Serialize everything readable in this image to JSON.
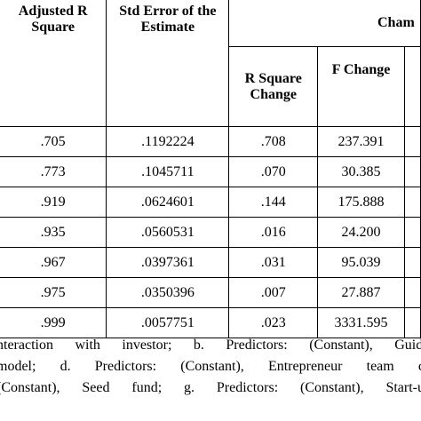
{
  "table": {
    "headers": {
      "adjusted_r_square": "Adjusted R Square",
      "std_error": "Std Error of the Estimate",
      "change_group": "Cham",
      "r_square_change": "R Square Change",
      "f_change": "F Change"
    },
    "rows": [
      {
        "adjusted_r_square": ".705",
        "std_error": ".1192224",
        "r_square_change": ".708",
        "f_change": "237.391"
      },
      {
        "adjusted_r_square": ".773",
        "std_error": ".1045711",
        "r_square_change": ".070",
        "f_change": "30.385"
      },
      {
        "adjusted_r_square": ".919",
        "std_error": ".0624601",
        "r_square_change": ".144",
        "f_change": "175.888"
      },
      {
        "adjusted_r_square": ".935",
        "std_error": ".0560531",
        "r_square_change": ".016",
        "f_change": "24.200"
      },
      {
        "adjusted_r_square": ".967",
        "std_error": ".0397361",
        "r_square_change": ".031",
        "f_change": "95.039"
      },
      {
        "adjusted_r_square": ".975",
        "std_error": ".0350396",
        "r_square_change": ".007",
        "f_change": "27.887"
      },
      {
        "adjusted_r_square": ".999",
        "std_error": ".0057751",
        "r_square_change": ".023",
        "f_change": "3331.595"
      }
    ]
  },
  "notes": {
    "line1": "nteraction with investor; b. Predictors: (Constant), Guidir",
    "line2": "model; d. Predictors: (Constant), Entrepreneur team co",
    "line3": "(Constant), Seed fund; g. Predictors: (Constant), Start-up"
  }
}
